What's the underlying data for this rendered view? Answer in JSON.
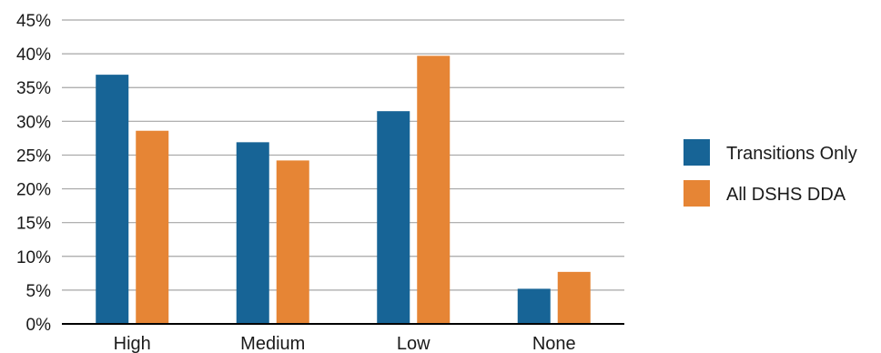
{
  "chart_data": {
    "type": "bar",
    "categories": [
      "High",
      "Medium",
      "Low",
      "None"
    ],
    "series": [
      {
        "name": "Transitions Only",
        "values": [
          36.9,
          26.9,
          31.5,
          5.2
        ],
        "color": "#176496"
      },
      {
        "name": "All DSHS DDA",
        "values": [
          28.6,
          24.2,
          39.7,
          7.7
        ],
        "color": "#E68535"
      }
    ],
    "ylim": [
      0,
      45
    ],
    "yticks": [
      0,
      5,
      10,
      15,
      20,
      25,
      30,
      35,
      40,
      45
    ],
    "ytick_labels": [
      "0%",
      "5%",
      "10%",
      "15%",
      "20%",
      "25%",
      "30%",
      "35%",
      "40%",
      "45%"
    ],
    "grid": true,
    "legend_position": "right",
    "title": "",
    "xlabel": "",
    "ylabel": ""
  }
}
